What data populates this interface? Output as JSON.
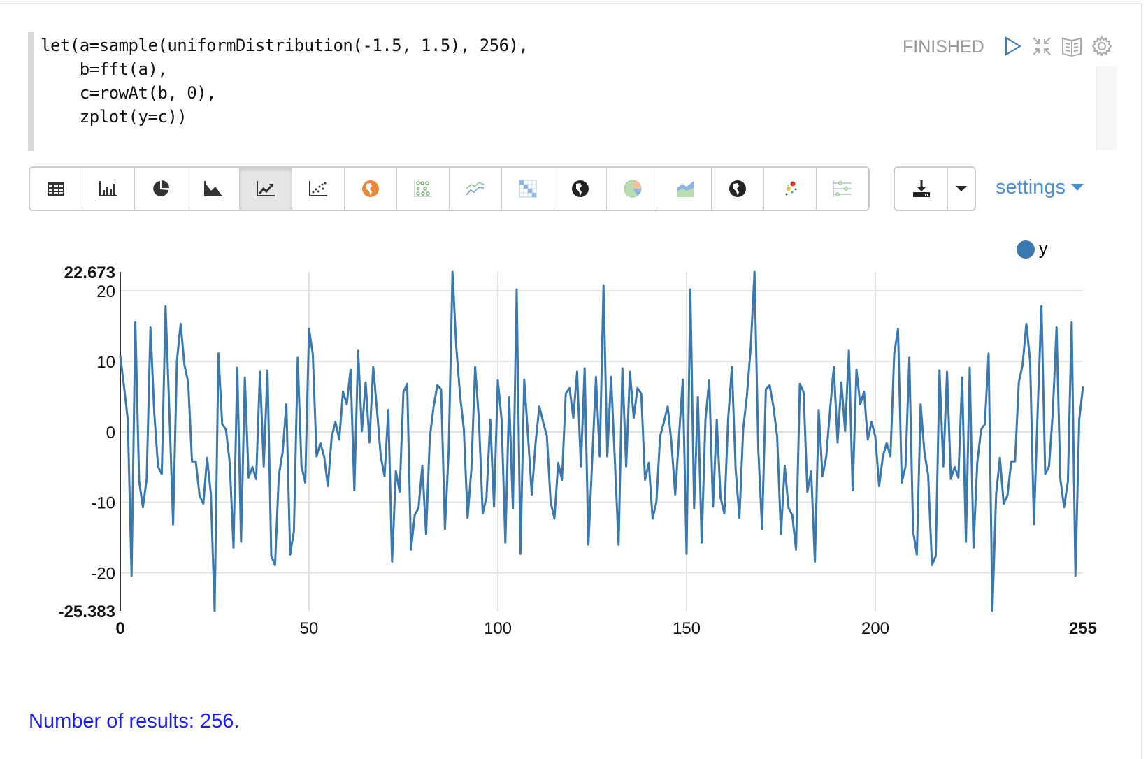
{
  "code": {
    "lines": [
      "let(a=sample(uniformDistribution(-1.5, 1.5), 256),",
      "    b=fft(a),",
      "    c=rowAt(b, 0),",
      "    zplot(y=c))"
    ]
  },
  "header": {
    "status": "FINISHED",
    "icons": [
      "play-icon",
      "collapse-icon",
      "book-icon",
      "gear-icon"
    ]
  },
  "toolbar": {
    "buttons": [
      "table",
      "bar-chart",
      "pie-chart",
      "area-chart",
      "line-chart",
      "scatter-chart",
      "map",
      "bubble-chart",
      "multi-line-chart",
      "heatmap",
      "globe",
      "pie-chart-color",
      "stacked-area",
      "globe-dark",
      "scatter-color",
      "timeline"
    ],
    "active": "line-chart",
    "download_icon": "download-icon",
    "dropdown_icon": "caret-down-icon",
    "settings_label": "settings"
  },
  "footer": {
    "results": "Number of results: 256."
  },
  "colors": {
    "series": "#3a78b0",
    "settings": "#4a90d9",
    "results": "#1a1aff"
  },
  "chart_data": {
    "type": "line",
    "legend": [
      "y"
    ],
    "legend_position": "top-right",
    "grid": true,
    "xlim": [
      0,
      255
    ],
    "ylim": [
      -25.383,
      22.673
    ],
    "x_ticks": [
      "0",
      "50",
      "100",
      "150",
      "200",
      "255"
    ],
    "y_ticks": [
      "22.673",
      "20",
      "10",
      "0",
      "-10",
      "-20",
      "-25.383"
    ],
    "series": [
      {
        "name": "y",
        "values": [
          10.8,
          6.4,
          1.7,
          -20.4,
          15.5,
          -7.0,
          -10.7,
          -6.7,
          14.8,
          2.7,
          -4.9,
          -6.0,
          17.8,
          3,
          -13.1,
          10.0,
          15.3,
          9.5,
          7.0,
          -4.2,
          -4.2,
          -9.0,
          -10.2,
          -3.7,
          -8.8,
          -25.383,
          11.1,
          1.1,
          0.3,
          -4.4,
          -16.4,
          9.1,
          -15.6,
          7.7,
          -6.5,
          -5.0,
          -6.7,
          8.5,
          -4.9,
          8.7,
          -17.6,
          -18.9,
          -6.2,
          -2.9,
          3.9,
          -17.4,
          -14.1,
          10.5,
          -4.9,
          -7.2,
          14.6,
          11.0,
          -3.5,
          -1.6,
          -3.5,
          -7.7,
          -0.7,
          1.4,
          -1.1,
          5.7,
          3.9,
          8.8,
          -8.3,
          11.5,
          0.1,
          7.0,
          -1.5,
          9.2,
          3.1,
          -3.5,
          -6.3,
          3.1,
          -18.4,
          -5.6,
          -8.5,
          5.6,
          6.8,
          -16.7,
          -11.8,
          -10.8,
          -4.8,
          -14.5,
          -0.7,
          3.6,
          6.6,
          6.0,
          -13.8,
          -2.5,
          22.673,
          12.0,
          5.2,
          0.4,
          -12.2,
          -5.3,
          9.2,
          1.7,
          -11.6,
          -9.3,
          1.7,
          -10.6,
          7.3,
          1.7,
          -15.7,
          4.9,
          -10.8,
          20.2,
          -17.3,
          7.4,
          -0.6,
          -8.9,
          -1.6,
          3.6,
          1.4,
          -0.6,
          -10.0,
          -12.3,
          -4.4,
          -6.8,
          5.4,
          6.2,
          2.0,
          8.5,
          -4.9,
          9.0,
          -16.0,
          -4,
          7.8,
          -3.5,
          20.7,
          -3.5,
          7.8,
          -4,
          -16.0,
          9.0,
          -4.9,
          8.5,
          2.0,
          6.2,
          5.4,
          -6.8,
          -4.4,
          -12.3,
          -10.0,
          -0.6,
          1.4,
          3.6,
          -1.6,
          -8.9,
          -0.6,
          7.4,
          -17.3,
          20.2,
          -10.8,
          4.9,
          -15.7,
          1.7,
          7.3,
          -10.6,
          1.7,
          -9.3,
          -11.6,
          1.7,
          9.2,
          -5.3,
          -12.2,
          0.4,
          5.2,
          12.0,
          22.673,
          -2.5,
          -13.8,
          6.0,
          6.6,
          3.6,
          -0.7,
          -14.5,
          -4.8,
          -10.8,
          -11.8,
          -16.7,
          6.8,
          5.6,
          -8.5,
          -5.6,
          -18.4,
          3.1,
          -6.3,
          -3.5,
          3.1,
          9.2,
          -1.5,
          7.0,
          0.1,
          11.5,
          -8.3,
          8.8,
          3.9,
          5.7,
          -1.1,
          1.4,
          -0.7,
          -7.7,
          -3.5,
          -1.6,
          -3.5,
          11.0,
          14.6,
          -7.2,
          -4.9,
          10.5,
          -14.1,
          -17.4,
          3.9,
          -2.9,
          -6.2,
          -18.9,
          -17.6,
          8.7,
          -4.9,
          8.5,
          -6.7,
          -5.0,
          -6.5,
          7.7,
          -15.6,
          9.1,
          -16.4,
          -4.4,
          0.3,
          1.1,
          11.1,
          -25.383,
          -8.8,
          -3.7,
          -10.2,
          -9.0,
          -4.2,
          -4.2,
          7.0,
          9.5,
          15.3,
          10.0,
          -13.1,
          3,
          17.8,
          -6.0,
          -4.9,
          2.7,
          14.8,
          -6.7,
          -10.7,
          -7.0,
          15.5,
          -20.4,
          1.7,
          6.4
        ]
      }
    ]
  }
}
